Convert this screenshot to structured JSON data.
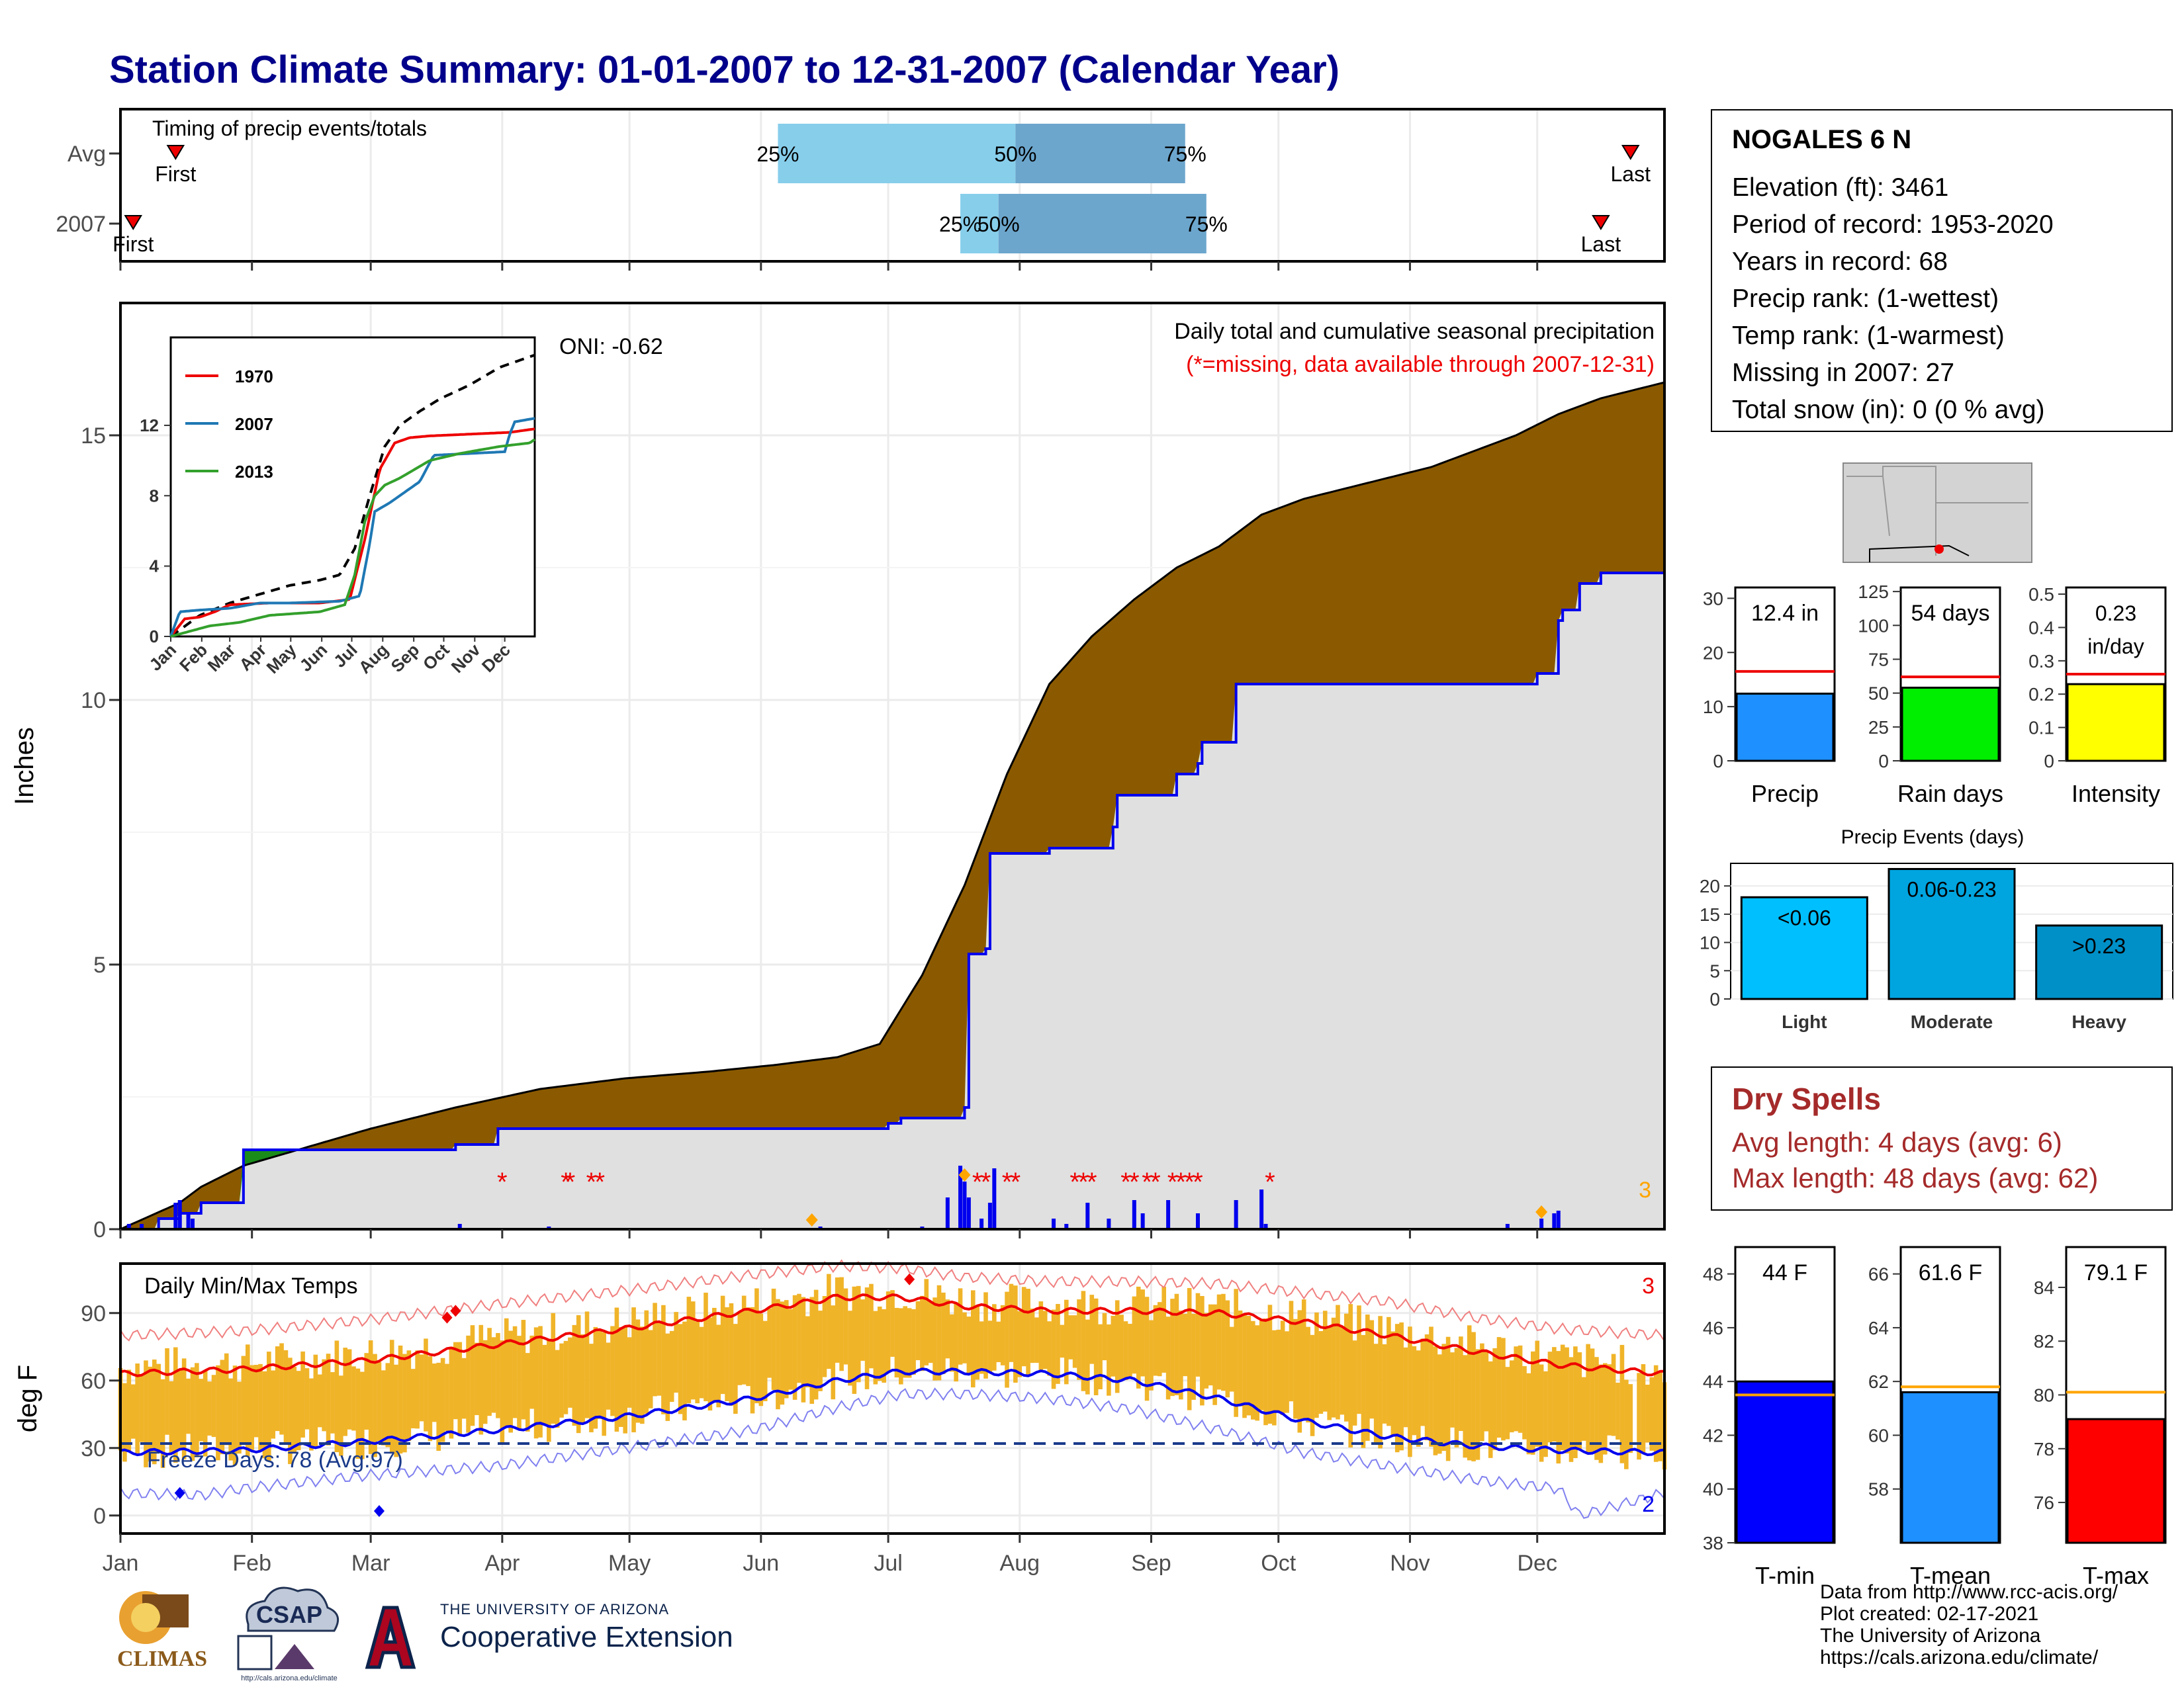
{
  "page": {
    "title": "Station Climate Summary: 01-01-2007 to 12-31-2007 (Calendar Year)"
  },
  "station_info": {
    "name": "NOGALES 6 N",
    "lines": [
      "Elevation (ft): 3461",
      "Period of record: 1953-2020",
      "Years in record: 68",
      "Precip rank:  (1-wettest)",
      "Temp rank:  (1-warmest)",
      "Missing in 2007: 27",
      "Total snow (in): 0 (0 % avg)"
    ]
  },
  "dry_spells": {
    "heading": "Dry Spells",
    "avg_line": "Avg length: 4 days (avg: 6)",
    "max_line": "Max length: 48 days (avg: 62)"
  },
  "footer": {
    "lines": [
      "Data from http://www.rcc-acis.org/",
      "Plot created: 02-17-2021",
      "The University of Arizona",
      "https://cals.arizona.edu/climate/"
    ]
  },
  "logos": {
    "climas": "CLIMAS",
    "csap": "CSAP",
    "csap_url": "http://cals.arizona.edu/climate",
    "ua_small": "THE UNIVERSITY OF ARIZONA",
    "ua_big": "Cooperative Extension"
  },
  "colors": {
    "title": "#00008B",
    "brown": "#8B5A00",
    "green": "#1A8C1A",
    "gray_fill": "#E0E0E0",
    "blue": "#0000EE",
    "red": "#EE0000",
    "orange_bar": "#F0B429",
    "light_blue": "#87CEEB",
    "mid_blue": "#6CA6CD",
    "dry_spell": "#A52A2A"
  },
  "chart_data": [
    {
      "id": "timing",
      "type": "bar",
      "title": "Timing of precip events/totals",
      "rows": [
        {
          "label": "Avg",
          "first_doy": 14,
          "p25_doy": 156,
          "p50_doy": 212,
          "p75_doy": 252,
          "last_doy": 357,
          "labels": {
            "first": "First",
            "p25": "25%",
            "p50": "50%",
            "p75": "75%",
            "last": "Last"
          }
        },
        {
          "label": "2007",
          "first_doy": 4,
          "p25_doy": 199,
          "p50_doy": 208,
          "p75_doy": 257,
          "last_doy": 350,
          "labels": {
            "first": "First",
            "p25": "25%",
            "p50": "50%",
            "p75": "75%",
            "last": "Last"
          }
        }
      ]
    },
    {
      "id": "precip",
      "type": "area",
      "title": "Daily total and cumulative seasonal precipitation",
      "subtitle": "(*=missing, data available through 2007-12-31)",
      "ylabel": "Inches",
      "ylim": [
        0,
        17.5
      ],
      "yticks": [
        0,
        5,
        10,
        15
      ],
      "oni": "ONI: -0.62",
      "corner_count": "3",
      "avg_cumulative": {
        "doy": [
          1,
          15,
          20,
          30,
          45,
          60,
          80,
          100,
          120,
          140,
          155,
          170,
          180,
          190,
          200,
          210,
          220,
          230,
          240,
          250,
          260,
          270,
          280,
          290,
          300,
          310,
          320,
          330,
          340,
          350,
          365
        ],
        "inches": [
          0,
          0.5,
          0.8,
          1.2,
          1.55,
          1.9,
          2.3,
          2.65,
          2.85,
          2.98,
          3.1,
          3.25,
          3.5,
          4.8,
          6.5,
          8.6,
          10.3,
          11.2,
          11.9,
          12.5,
          12.9,
          13.5,
          13.8,
          14.0,
          14.2,
          14.4,
          14.7,
          15.0,
          15.4,
          15.7,
          16.0
        ]
      },
      "cumulative_2007": {
        "doy": [
          1,
          10,
          15,
          20,
          30,
          45,
          60,
          80,
          90,
          120,
          140,
          170,
          182,
          185,
          200,
          201,
          205,
          206,
          220,
          235,
          236,
          250,
          255,
          256,
          264,
          300,
          330,
          335,
          340,
          341,
          345,
          350,
          365
        ],
        "inches": [
          0,
          0.2,
          0.3,
          0.5,
          1.5,
          1.5,
          1.5,
          1.6,
          1.9,
          1.9,
          1.9,
          1.9,
          2.0,
          2.1,
          2.3,
          5.2,
          5.3,
          7.1,
          7.2,
          7.6,
          8.2,
          8.6,
          8.8,
          9.2,
          10.3,
          10.3,
          10.3,
          10.5,
          11.5,
          11.7,
          12.2,
          12.4,
          12.4
        ]
      },
      "daily_bars": {
        "doy": [
          3,
          6,
          14,
          15,
          17,
          18,
          81,
          102,
          166,
          190,
          196,
          199,
          200,
          201,
          204,
          206,
          207,
          221,
          224,
          229,
          234,
          240,
          242,
          248,
          255,
          264,
          270,
          271,
          328,
          336,
          339,
          340
        ],
        "inches": [
          0.1,
          0.1,
          0.5,
          0.55,
          0.3,
          0.2,
          0.1,
          0.05,
          0.05,
          0.05,
          0.6,
          1.2,
          0.9,
          0.6,
          0.2,
          0.5,
          1.15,
          0.2,
          0.1,
          0.5,
          0.2,
          0.55,
          0.3,
          0.55,
          0.3,
          0.55,
          0.75,
          0.1,
          0.1,
          0.2,
          0.3,
          0.35
        ]
      },
      "missing_doy": [
        91,
        106,
        107,
        112,
        114,
        203,
        205,
        210,
        212,
        226,
        228,
        230,
        238,
        240,
        243,
        245,
        249,
        251,
        253,
        255,
        272
      ],
      "orange_marks_doy": [
        164,
        200,
        336
      ]
    },
    {
      "id": "inset",
      "type": "line",
      "yticks": [
        0,
        4,
        8,
        12
      ],
      "ylim": [
        0,
        17
      ],
      "xticks": [
        "Jan",
        "Feb",
        "Mar",
        "Apr",
        "May",
        "Jun",
        "Jul",
        "Aug",
        "Sep",
        "Oct",
        "Nov",
        "Dec"
      ],
      "series": [
        {
          "name": "1970",
          "color": "#EE0000",
          "doy": [
            1,
            15,
            30,
            45,
            60,
            100,
            150,
            180,
            195,
            210,
            225,
            240,
            260,
            300,
            340,
            365
          ],
          "inches": [
            0,
            1.0,
            1.1,
            1.4,
            1.8,
            1.9,
            1.9,
            2.1,
            5.5,
            9.5,
            11.0,
            11.3,
            11.4,
            11.5,
            11.6,
            11.8
          ]
        },
        {
          "name": "2007",
          "color": "#1F78B4",
          "doy": [
            1,
            10,
            30,
            60,
            90,
            120,
            170,
            190,
            200,
            205,
            220,
            250,
            264,
            300,
            335,
            340,
            345,
            365
          ],
          "inches": [
            0,
            1.4,
            1.5,
            1.6,
            1.9,
            1.9,
            2.0,
            2.3,
            5.3,
            7.1,
            7.6,
            8.8,
            10.3,
            10.4,
            10.5,
            11.5,
            12.2,
            12.4
          ]
        },
        {
          "name": "2013",
          "color": "#33A02C",
          "doy": [
            1,
            40,
            70,
            100,
            150,
            175,
            185,
            195,
            205,
            215,
            230,
            260,
            290,
            330,
            360,
            365
          ],
          "inches": [
            0,
            0.6,
            0.8,
            1.2,
            1.4,
            1.8,
            3.5,
            6.5,
            8.0,
            8.6,
            9.0,
            10.0,
            10.4,
            10.8,
            11.0,
            11.2
          ]
        }
      ],
      "avg_line": {
        "name": "avg",
        "color": "#000000",
        "doy": [
          1,
          30,
          60,
          90,
          120,
          150,
          170,
          185,
          200,
          215,
          230,
          250,
          270,
          300,
          330,
          365
        ],
        "inches": [
          0,
          1.2,
          1.9,
          2.4,
          2.9,
          3.2,
          3.5,
          5.0,
          8.0,
          10.8,
          12.0,
          12.8,
          13.5,
          14.3,
          15.3,
          16.0
        ]
      }
    },
    {
      "id": "temps",
      "type": "line",
      "title": "Daily Min/Max Temps",
      "ylabel": "deg F",
      "ylim": [
        -8,
        112
      ],
      "yticks": [
        0,
        30,
        60,
        90
      ],
      "freeze_text": "Freeze Days: 78 (Avg:97)",
      "freeze_line_f": 32,
      "top_count": "3",
      "bottom_count": "2",
      "avg_max": {
        "doy": [
          1,
          30,
          60,
          90,
          120,
          150,
          170,
          185,
          200,
          220,
          240,
          260,
          280,
          300,
          320,
          340,
          365
        ],
        "f": [
          63,
          65,
          69,
          76,
          83,
          91,
          97,
          97,
          93,
          91,
          91,
          90,
          86,
          80,
          73,
          67,
          63
        ]
      },
      "avg_min": {
        "doy": [
          1,
          30,
          60,
          90,
          120,
          150,
          170,
          185,
          200,
          220,
          240,
          260,
          280,
          300,
          320,
          340,
          365
        ],
        "f": [
          28,
          29,
          33,
          38,
          44,
          52,
          60,
          64,
          64,
          63,
          60,
          52,
          42,
          35,
          31,
          29,
          28
        ]
      },
      "record_max": {
        "doy": [
          1,
          30,
          60,
          90,
          120,
          150,
          170,
          185,
          200,
          220,
          240,
          260,
          280,
          300,
          320,
          340,
          365
        ],
        "f": [
          80,
          82,
          87,
          94,
          100,
          107,
          111,
          110,
          106,
          104,
          104,
          103,
          99,
          95,
          88,
          83,
          80
        ]
      },
      "record_min": {
        "doy": [
          1,
          20,
          30,
          60,
          90,
          120,
          150,
          170,
          185,
          200,
          220,
          240,
          260,
          280,
          300,
          320,
          340,
          345,
          365
        ],
        "f": [
          10,
          9,
          12,
          18,
          22,
          30,
          38,
          48,
          54,
          54,
          52,
          47,
          38,
          28,
          22,
          16,
          12,
          0,
          10
        ]
      },
      "markers": [
        {
          "doy": 15,
          "f": 10,
          "color": "#0000EE"
        },
        {
          "doy": 78,
          "f": 88,
          "color": "#EE0000"
        },
        {
          "doy": 80,
          "f": 91,
          "color": "#EE0000"
        },
        {
          "doy": 187,
          "f": 105,
          "color": "#EE0000"
        },
        {
          "doy": 62,
          "f": 2,
          "color": "#0000EE"
        }
      ]
    },
    {
      "id": "precip_summary",
      "type": "bar",
      "panels": [
        {
          "xlabel": "Precip",
          "value": 12.4,
          "label": "12.4 in",
          "avg": 16.5,
          "ylim": [
            0,
            32
          ],
          "yticks": [
            0,
            10,
            20,
            30
          ],
          "color": "#1E90FF"
        },
        {
          "xlabel": "Rain days",
          "value": 54,
          "label": "54 days",
          "avg": 62,
          "ylim": [
            0,
            128
          ],
          "yticks": [
            0,
            25,
            50,
            75,
            100,
            125
          ],
          "color": "#00EE00"
        },
        {
          "xlabel": "Intensity",
          "value": 0.23,
          "label_lines": [
            "0.23",
            "in/day"
          ],
          "avg": 0.26,
          "ylim": [
            0,
            0.52
          ],
          "yticks": [
            0.0,
            0.1,
            0.2,
            0.3,
            0.4,
            0.5
          ],
          "color": "#FFFF00"
        }
      ]
    },
    {
      "id": "precip_events",
      "type": "bar",
      "title": "Precip Events (days)",
      "categories": [
        "Light",
        "Moderate",
        "Heavy"
      ],
      "values": [
        18,
        23,
        13
      ],
      "bar_labels": [
        "<0.06",
        "0.06-0.23",
        ">0.23"
      ],
      "colors": [
        "#00BFFF",
        "#00A5E0",
        "#0090C8"
      ],
      "ylim": [
        0,
        24
      ],
      "yticks": [
        0,
        5,
        10,
        15,
        20
      ]
    },
    {
      "id": "temp_summary",
      "type": "bar",
      "panels": [
        {
          "xlabel": "T-min",
          "value": 44,
          "label": "44 F",
          "avg": 43.5,
          "ylim": [
            38,
            49
          ],
          "yticks": [
            38,
            40,
            42,
            44,
            46,
            48
          ],
          "color": "#0000FF"
        },
        {
          "xlabel": "T-mean",
          "value": 61.6,
          "label": "61.6 F",
          "avg": 61.8,
          "ylim": [
            56,
            67
          ],
          "yticks": [
            58,
            60,
            62,
            64,
            66
          ],
          "color": "#1E90FF"
        },
        {
          "xlabel": "T-max",
          "value": 79.1,
          "label": "79.1 F",
          "avg": 80.1,
          "ylim": [
            74.5,
            85.5
          ],
          "yticks": [
            76,
            78,
            80,
            82,
            84
          ],
          "color": "#FF0000"
        }
      ]
    }
  ],
  "months": [
    "Jan",
    "Feb",
    "Mar",
    "Apr",
    "May",
    "Jun",
    "Jul",
    "Aug",
    "Sep",
    "Oct",
    "Nov",
    "Dec"
  ],
  "map_label": "",
  "inset_legend": [
    "1970",
    "2007",
    "2013"
  ]
}
